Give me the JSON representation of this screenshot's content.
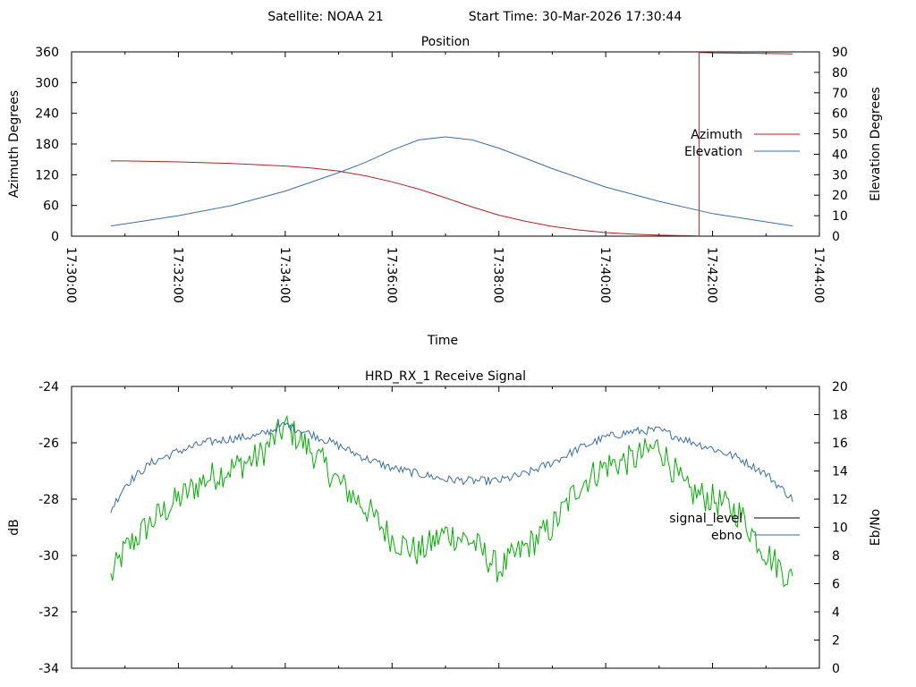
{
  "header": {
    "satellite_label": "Satellite: NOAA 21",
    "start_time_label": "Start Time: 30-Mar-2026 17:30:44"
  },
  "colors": {
    "azimuth": "#b22222",
    "elevation": "#3a6ea5",
    "signal_level": "#00b000",
    "ebno": "#3a6ea5",
    "legend_signal_swatch": "#000000",
    "axis": "#000000"
  },
  "chart_data": [
    {
      "type": "line",
      "title": "Position",
      "xlabel": "Time",
      "ylabel": "Azimuth Degrees",
      "y2label": "Elevation Degrees",
      "xlim": [
        "17:30:00",
        "17:44:00"
      ],
      "xticks": [
        "17:30:00",
        "17:32:00",
        "17:34:00",
        "17:36:00",
        "17:38:00",
        "17:40:00",
        "17:42:00",
        "17:44:00"
      ],
      "ylim": [
        0,
        360
      ],
      "yticks": [
        0,
        60,
        120,
        180,
        240,
        300,
        360
      ],
      "y2lim": [
        0,
        90
      ],
      "y2ticks": [
        0,
        10,
        20,
        30,
        40,
        50,
        60,
        70,
        80,
        90
      ],
      "legend_position": "right",
      "series": [
        {
          "name": "Azimuth",
          "axis": "y",
          "color": "#b22222",
          "x": [
            "17:30:44",
            "17:31:00",
            "17:32:00",
            "17:33:00",
            "17:34:00",
            "17:34:30",
            "17:35:00",
            "17:35:30",
            "17:36:00",
            "17:36:30",
            "17:37:00",
            "17:37:30",
            "17:38:00",
            "17:38:30",
            "17:39:00",
            "17:39:30",
            "17:40:00",
            "17:40:30",
            "17:41:00",
            "17:41:30",
            "17:41:45",
            "17:41:45",
            "17:42:00",
            "17:43:00",
            "17:43:30"
          ],
          "values": [
            147,
            147,
            145,
            142,
            137,
            133,
            127,
            118,
            106,
            92,
            75,
            57,
            41,
            29,
            19,
            12,
            7,
            4,
            2,
            1,
            0.5,
            359,
            358,
            357,
            356
          ]
        },
        {
          "name": "Elevation",
          "axis": "y2",
          "color": "#3a6ea5",
          "x": [
            "17:30:44",
            "17:31:00",
            "17:32:00",
            "17:33:00",
            "17:34:00",
            "17:35:00",
            "17:35:30",
            "17:36:00",
            "17:36:30",
            "17:37:00",
            "17:37:30",
            "17:38:00",
            "17:38:30",
            "17:39:00",
            "17:40:00",
            "17:41:00",
            "17:42:00",
            "17:43:00",
            "17:43:30"
          ],
          "values": [
            5,
            6,
            10,
            15,
            22,
            31,
            36,
            42,
            47,
            48.5,
            47,
            43,
            38,
            33,
            24,
            17,
            11,
            7,
            5
          ]
        }
      ]
    },
    {
      "type": "line",
      "title": "HRD_RX_1 Receive Signal",
      "xlabel": "",
      "ylabel": "dB",
      "y2label": "Eb/No",
      "xlim": [
        "17:30:00",
        "17:44:00"
      ],
      "ylim": [
        -34,
        -24
      ],
      "yticks": [
        -34,
        -32,
        -30,
        -28,
        -26,
        -24
      ],
      "y2lim": [
        0,
        20
      ],
      "y2ticks": [
        0,
        2,
        4,
        6,
        8,
        10,
        12,
        14,
        16,
        18,
        20
      ],
      "legend_position": "right",
      "series": [
        {
          "name": "signal_level",
          "axis": "y",
          "color": "#00b000",
          "x": [
            "17:30:44",
            "17:31:00",
            "17:31:30",
            "17:32:00",
            "17:32:30",
            "17:33:00",
            "17:33:30",
            "17:34:00",
            "17:34:30",
            "17:35:00",
            "17:35:30",
            "17:36:00",
            "17:36:30",
            "17:37:00",
            "17:37:30",
            "17:38:00",
            "17:38:30",
            "17:39:00",
            "17:39:30",
            "17:40:00",
            "17:40:30",
            "17:41:00",
            "17:41:30",
            "17:42:00",
            "17:42:30",
            "17:43:00",
            "17:43:30"
          ],
          "values": [
            -30.8,
            -29.8,
            -28.8,
            -28.0,
            -27.3,
            -26.9,
            -26.5,
            -25.4,
            -26.3,
            -27.4,
            -28.3,
            -29.4,
            -29.9,
            -29.2,
            -29.5,
            -30.5,
            -29.7,
            -29.0,
            -27.5,
            -26.8,
            -26.6,
            -26.1,
            -27.7,
            -28.0,
            -28.5,
            -29.9,
            -30.9
          ],
          "noise": 0.55
        },
        {
          "name": "ebno",
          "axis": "y2",
          "color": "#3a6ea5",
          "x": [
            "17:30:44",
            "17:31:00",
            "17:31:30",
            "17:32:00",
            "17:32:30",
            "17:33:00",
            "17:33:30",
            "17:34:00",
            "17:34:30",
            "17:35:00",
            "17:35:30",
            "17:36:00",
            "17:36:30",
            "17:37:00",
            "17:37:30",
            "17:38:00",
            "17:38:30",
            "17:39:00",
            "17:39:30",
            "17:40:00",
            "17:40:30",
            "17:41:00",
            "17:41:30",
            "17:42:00",
            "17:42:30",
            "17:43:00",
            "17:43:30"
          ],
          "values": [
            11.2,
            13.0,
            14.6,
            15.4,
            16.0,
            16.3,
            16.5,
            17.3,
            16.6,
            15.8,
            14.9,
            14.2,
            13.8,
            13.4,
            13.3,
            13.3,
            13.8,
            14.6,
            15.6,
            16.4,
            16.8,
            16.9,
            16.2,
            15.6,
            14.9,
            13.8,
            12.0
          ],
          "noise": 0.3
        }
      ]
    }
  ]
}
